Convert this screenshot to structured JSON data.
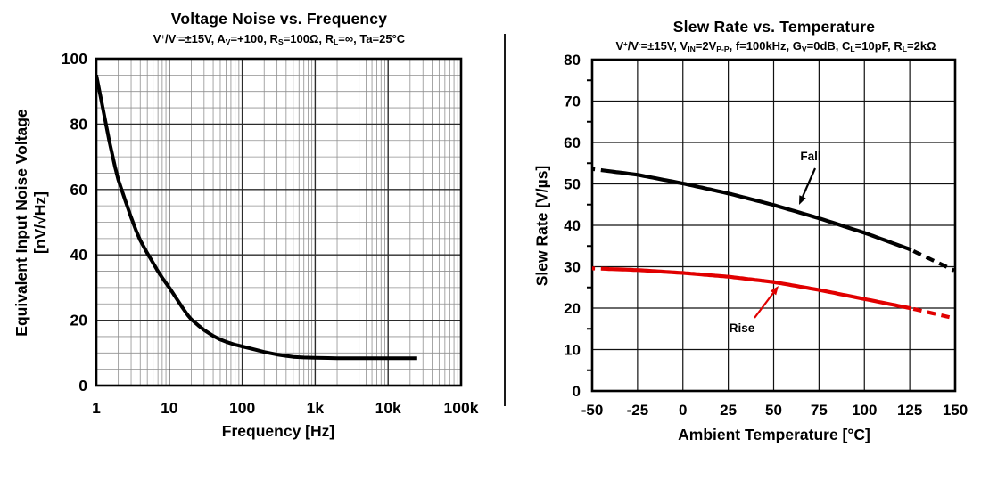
{
  "figure": {
    "divider_present": true
  },
  "chart_data": [
    {
      "type": "line",
      "title": "Voltage Noise vs. Frequency",
      "subtitle_rich": "V^+^/V^-^=±15V, A~V~=+100, R~S~=100Ω, R~L~=∞, Ta=25°C",
      "subtitle_plain": "V+/V-=±15V, AV=+100, RS=100Ω, RL=∞, Ta=25°C",
      "xlabel": "Frequency [Hz]",
      "ylabel_line1": "Equivalent Input Noise Voltage",
      "ylabel_line2": "[nV/√Hz]",
      "x_scale": "log",
      "xlim": [
        1,
        100000
      ],
      "ylim": [
        0,
        100
      ],
      "x_tick_labels": [
        "1",
        "10",
        "100",
        "1k",
        "10k",
        "100k"
      ],
      "y_ticks": [
        0,
        20,
        40,
        60,
        80,
        100
      ],
      "y_minor_step": 5,
      "grid": "log major + minor gridlines",
      "legend": "none",
      "series": [
        {
          "name": "equivalent-input-noise-voltage",
          "color": "#000000",
          "points": [
            [
              1,
              95
            ],
            [
              1.2,
              86
            ],
            [
              1.5,
              75
            ],
            [
              1.8,
              67
            ],
            [
              2,
              63
            ],
            [
              2.5,
              56.5
            ],
            [
              3,
              51.5
            ],
            [
              3.5,
              47.5
            ],
            [
              4,
              44.5
            ],
            [
              5,
              40.5
            ],
            [
              6,
              37.5
            ],
            [
              7,
              35
            ],
            [
              8,
              33
            ],
            [
              9,
              31.4
            ],
            [
              10,
              30
            ],
            [
              12,
              27.3
            ],
            [
              15,
              24
            ],
            [
              18,
              21.5
            ],
            [
              20,
              20.3
            ],
            [
              25,
              18.4
            ],
            [
              30,
              17
            ],
            [
              40,
              15.2
            ],
            [
              50,
              14.1
            ],
            [
              60,
              13.4
            ],
            [
              80,
              12.5
            ],
            [
              100,
              12
            ],
            [
              150,
              11
            ],
            [
              200,
              10.3
            ],
            [
              300,
              9.5
            ],
            [
              400,
              9.1
            ],
            [
              500,
              8.8
            ],
            [
              700,
              8.6
            ],
            [
              1000,
              8.5
            ],
            [
              1500,
              8.45
            ],
            [
              2000,
              8.4
            ],
            [
              5000,
              8.4
            ],
            [
              10000,
              8.4
            ],
            [
              25000,
              8.4
            ]
          ]
        }
      ]
    },
    {
      "type": "line",
      "title": "Slew Rate vs. Temperature",
      "subtitle_rich": "V^+^/V^-^=±15V, V~IN~=2V~P-P~, f=100kHz, G~V~=0dB, C~L~=10pF, R~L~=2kΩ",
      "subtitle_plain": "V+/V-=±15V, VIN=2VP-P, f=100kHz, GV=0dB, CL=10pF, RL=2kΩ",
      "xlabel": "Ambient Temperature [°C]",
      "ylabel": "Slew Rate [V/µs]",
      "x_scale": "linear",
      "xlim": [
        -50,
        150
      ],
      "ylim": [
        0,
        80
      ],
      "x_ticks": [
        -50,
        -25,
        0,
        25,
        50,
        75,
        100,
        125,
        150
      ],
      "y_ticks": [
        0,
        10,
        20,
        30,
        40,
        50,
        60,
        70,
        80
      ],
      "y_minor_tick_step": 5,
      "grid": "major gridlines both axes",
      "legend": "in-plot labels with arrows",
      "categories_x": [
        -50,
        -25,
        0,
        25,
        50,
        75,
        100,
        125,
        150
      ],
      "series": [
        {
          "name": "Fall",
          "color": "#000000",
          "values": [
            53.6,
            52.2,
            50.1,
            47.7,
            44.9,
            41.7,
            38.2,
            34.2,
            29.0
          ],
          "line_style": "solid, dashed above ~127°C and tiny dash at -50°C"
        },
        {
          "name": "Rise",
          "color": "#e10000",
          "values": [
            29.6,
            29.2,
            28.5,
            27.6,
            26.3,
            24.4,
            22.2,
            20.0,
            17.5
          ],
          "line_style": "solid, dashed above ~127°C and tiny dash at -50°C"
        }
      ],
      "annotations": [
        {
          "text": "Fall",
          "arrow_color": "#000000",
          "text_color": "#000000"
        },
        {
          "text": "Rise",
          "arrow_color": "#e10000",
          "text_color": "#000000"
        }
      ]
    }
  ]
}
